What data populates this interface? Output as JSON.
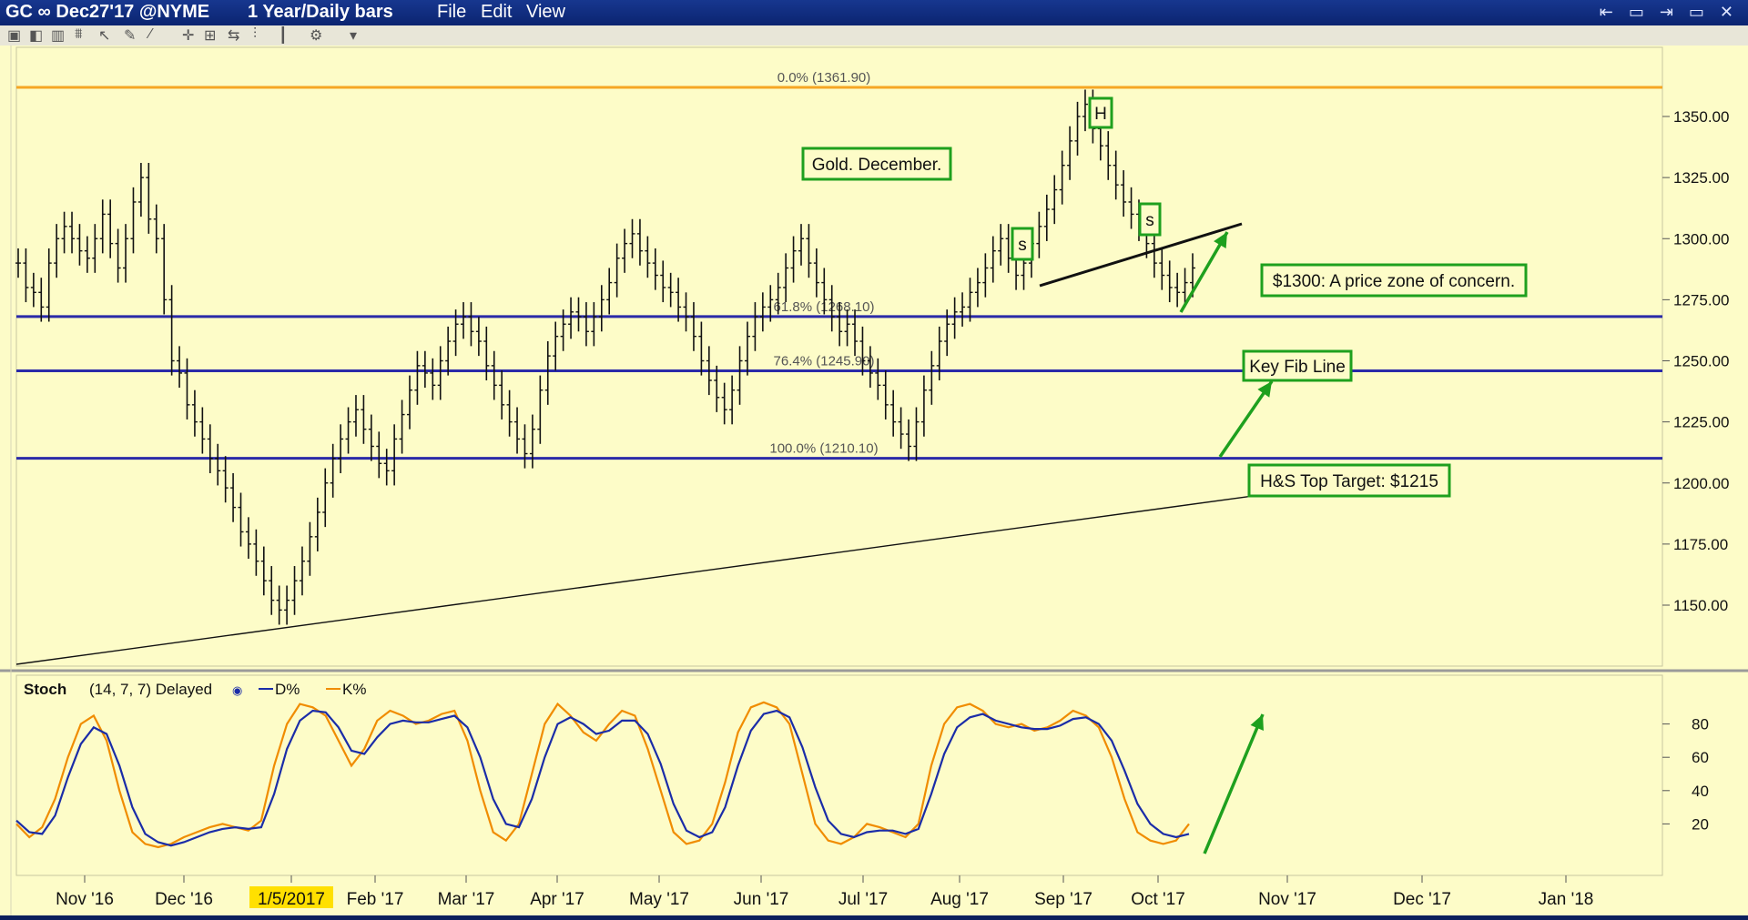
{
  "window": {
    "symbol": "GC ∞ Dec27'17 @NYME",
    "period": "1 Year/Daily bars",
    "menus": [
      "File",
      "Edit",
      "View"
    ]
  },
  "toolbar_icons": [
    "text-tool-icon",
    "annotation-icon",
    "bars-icon",
    "indicator-icon",
    "cursor-icon",
    "pencil-icon",
    "line-icon",
    "crosshair-icon",
    "zoom-icon",
    "scroll-icon",
    "bar-style-icon",
    "candle-icon",
    "settings-icon",
    "dropdown-icon"
  ],
  "colors": {
    "background": "#fdfcc8",
    "orange_line": "#f5a623",
    "blue_line": "#2a2aa8",
    "green": "#1ea01e",
    "d_line": "#1a2ca8",
    "k_line": "#f08c00"
  },
  "chart_data": [
    {
      "type": "ohlc",
      "ylim": [
        1130,
        1375
      ],
      "yticks": [
        "1150.00",
        "1175.00",
        "1200.00",
        "1225.00",
        "1250.00",
        "1275.00",
        "1300.00",
        "1325.00",
        "1350.00"
      ],
      "xticks": [
        "Nov '16",
        "Dec '16",
        "1/5/2017",
        "Feb '17",
        "Mar '17",
        "Apr '17",
        "May '17",
        "Jun '17",
        "Jul '17",
        "Aug '17",
        "Sep '17",
        "Oct '17",
        "Nov '17",
        "Dec '17",
        "Jan '18"
      ],
      "highlighted_xtick": "1/5/2017",
      "closes": [
        1290,
        1280,
        1278,
        1272,
        1290,
        1300,
        1305,
        1300,
        1295,
        1292,
        1300,
        1310,
        1298,
        1288,
        1300,
        1315,
        1325,
        1308,
        1300,
        1275,
        1250,
        1245,
        1232,
        1225,
        1218,
        1210,
        1205,
        1198,
        1190,
        1180,
        1175,
        1168,
        1160,
        1152,
        1148,
        1152,
        1160,
        1168,
        1178,
        1188,
        1200,
        1210,
        1218,
        1225,
        1230,
        1222,
        1215,
        1208,
        1205,
        1218,
        1228,
        1238,
        1248,
        1245,
        1240,
        1250,
        1258,
        1265,
        1268,
        1262,
        1258,
        1248,
        1240,
        1232,
        1225,
        1218,
        1212,
        1222,
        1238,
        1252,
        1260,
        1265,
        1270,
        1268,
        1262,
        1268,
        1275,
        1282,
        1292,
        1298,
        1302,
        1295,
        1290,
        1285,
        1280,
        1278,
        1272,
        1268,
        1260,
        1250,
        1242,
        1235,
        1230,
        1238,
        1250,
        1260,
        1268,
        1272,
        1275,
        1280,
        1288,
        1295,
        1300,
        1290,
        1282,
        1275,
        1268,
        1262,
        1265,
        1258,
        1250,
        1245,
        1240,
        1232,
        1225,
        1220,
        1215,
        1225,
        1238,
        1248,
        1258,
        1265,
        1270,
        1272,
        1278,
        1282,
        1288,
        1295,
        1300,
        1292,
        1285,
        1290,
        1298,
        1305,
        1312,
        1320,
        1330,
        1340,
        1350,
        1355,
        1345,
        1338,
        1330,
        1322,
        1315,
        1310,
        1305,
        1298,
        1290,
        1285,
        1280,
        1278,
        1282,
        1288
      ],
      "price_lines": [
        {
          "label": "0.0% (1361.90)",
          "value": 1361.9,
          "color": "orange"
        },
        {
          "label": "61.8% (1268.10)",
          "value": 1268.1,
          "color": "blue"
        },
        {
          "label": "76.4% (1245.90)",
          "value": 1245.9,
          "color": "blue"
        },
        {
          "label": "100.0% (1210.10)",
          "value": 1210.1,
          "color": "blue"
        }
      ],
      "annotations": [
        {
          "name": "title-box",
          "text": "Gold. December."
        },
        {
          "name": "h-marker",
          "text": "H"
        },
        {
          "name": "s-left-marker",
          "text": "s"
        },
        {
          "name": "s-right-marker",
          "text": "s"
        },
        {
          "name": "concern-box",
          "text": "$1300: A price zone of concern."
        },
        {
          "name": "fib-box",
          "text": "Key Fib Line"
        },
        {
          "name": "target-box",
          "text": "H&S Top Target: $1215"
        }
      ]
    },
    {
      "type": "line",
      "title": "Stoch",
      "params": "(14, 7, 7) Delayed",
      "legend": [
        "D%",
        "K%"
      ],
      "ylim": [
        0,
        100
      ],
      "yticks": [
        "20",
        "40",
        "60",
        "80"
      ],
      "series": [
        {
          "name": "K%",
          "values": [
            20,
            12,
            18,
            35,
            60,
            80,
            85,
            70,
            40,
            15,
            8,
            6,
            8,
            12,
            15,
            18,
            20,
            18,
            16,
            22,
            55,
            80,
            92,
            90,
            85,
            70,
            55,
            65,
            82,
            88,
            85,
            80,
            82,
            86,
            88,
            70,
            40,
            15,
            10,
            20,
            50,
            80,
            92,
            85,
            75,
            70,
            80,
            88,
            85,
            65,
            40,
            15,
            8,
            10,
            20,
            45,
            75,
            90,
            93,
            90,
            80,
            50,
            20,
            10,
            8,
            12,
            20,
            18,
            15,
            12,
            20,
            55,
            80,
            90,
            92,
            88,
            80,
            78,
            80,
            76,
            78,
            82,
            88,
            85,
            78,
            60,
            35,
            15,
            10,
            8,
            10,
            20
          ]
        },
        {
          "name": "D%",
          "values": [
            22,
            15,
            14,
            25,
            48,
            68,
            78,
            74,
            55,
            30,
            14,
            9,
            7,
            9,
            12,
            15,
            17,
            18,
            17,
            18,
            38,
            65,
            82,
            88,
            87,
            78,
            64,
            62,
            72,
            80,
            82,
            81,
            81,
            83,
            85,
            78,
            60,
            35,
            20,
            18,
            35,
            60,
            80,
            84,
            80,
            74,
            76,
            82,
            82,
            74,
            56,
            32,
            16,
            12,
            15,
            30,
            55,
            76,
            86,
            88,
            84,
            66,
            42,
            22,
            14,
            12,
            15,
            16,
            16,
            14,
            17,
            38,
            62,
            78,
            84,
            86,
            82,
            80,
            78,
            77,
            77,
            79,
            83,
            84,
            80,
            70,
            52,
            32,
            20,
            14,
            12,
            14
          ]
        }
      ]
    }
  ]
}
